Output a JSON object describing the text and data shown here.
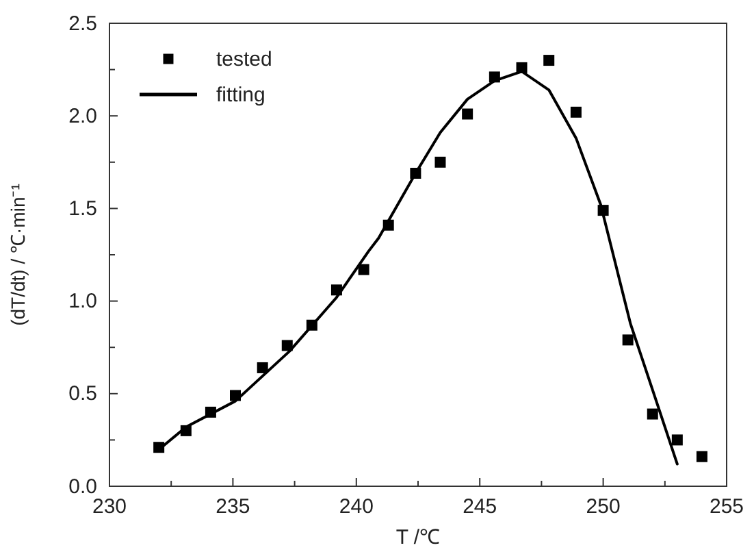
{
  "chart_data": {
    "type": "scatter",
    "xlabel": "T /℃",
    "ylabel": "(dT/dt) / ℃·min⁻¹",
    "xlim": [
      230,
      255
    ],
    "ylim": [
      0,
      2.5
    ],
    "xticks": [
      230,
      {
        "value": 232.5,
        "label": null
      },
      235,
      {
        "value": 237.5,
        "label": null
      },
      240,
      {
        "value": 242.5,
        "label": null
      },
      245,
      {
        "value": 247.5,
        "label": null
      },
      250,
      {
        "value": 252.5,
        "label": null
      },
      255
    ],
    "yticks": [
      {
        "value": 0,
        "label": "0.0"
      },
      {
        "value": 0.25,
        "label": null
      },
      {
        "value": 0.5,
        "label": "0.5"
      },
      {
        "value": 0.75,
        "label": null
      },
      {
        "value": 1,
        "label": "1.0"
      },
      {
        "value": 1.25,
        "label": null
      },
      {
        "value": 1.5,
        "label": "1.5"
      },
      {
        "value": 1.75,
        "label": null
      },
      {
        "value": 2,
        "label": "2.0"
      },
      {
        "value": 2.25,
        "label": null
      },
      {
        "value": 2.5,
        "label": "2.5"
      }
    ],
    "legend": "top left",
    "grid": false,
    "series": [
      {
        "name": "tested",
        "marker": "square",
        "color": "#000000",
        "x": [
          232.0,
          233.1,
          234.1,
          235.1,
          236.2,
          237.2,
          238.2,
          239.2,
          240.3,
          241.3,
          242.4,
          243.4,
          244.5,
          245.6,
          246.7,
          247.8,
          248.9,
          250.0,
          251.0,
          252.0,
          253.0,
          254.0
        ],
        "values": [
          0.21,
          0.3,
          0.4,
          0.49,
          0.64,
          0.76,
          0.87,
          1.06,
          1.17,
          1.41,
          1.69,
          1.75,
          2.01,
          2.21,
          2.26,
          2.3,
          2.02,
          1.49,
          0.79,
          0.39,
          0.25,
          0.16
        ]
      },
      {
        "name": "fitting",
        "type": "line",
        "marker": "none",
        "line_style": "solid",
        "color": "#000000",
        "x": [
          232.2,
          233.1,
          235.1,
          237.3,
          239.2,
          240.5,
          240.9,
          242.4,
          243.4,
          244.5,
          245.6,
          246.7,
          247.8,
          248.9,
          249.9,
          251.1,
          252.1,
          253.0
        ],
        "values": [
          0.22,
          0.32,
          0.46,
          0.73,
          1.02,
          1.27,
          1.34,
          1.69,
          1.91,
          2.09,
          2.19,
          2.24,
          2.14,
          1.88,
          1.52,
          0.88,
          0.48,
          0.12
        ]
      }
    ]
  }
}
